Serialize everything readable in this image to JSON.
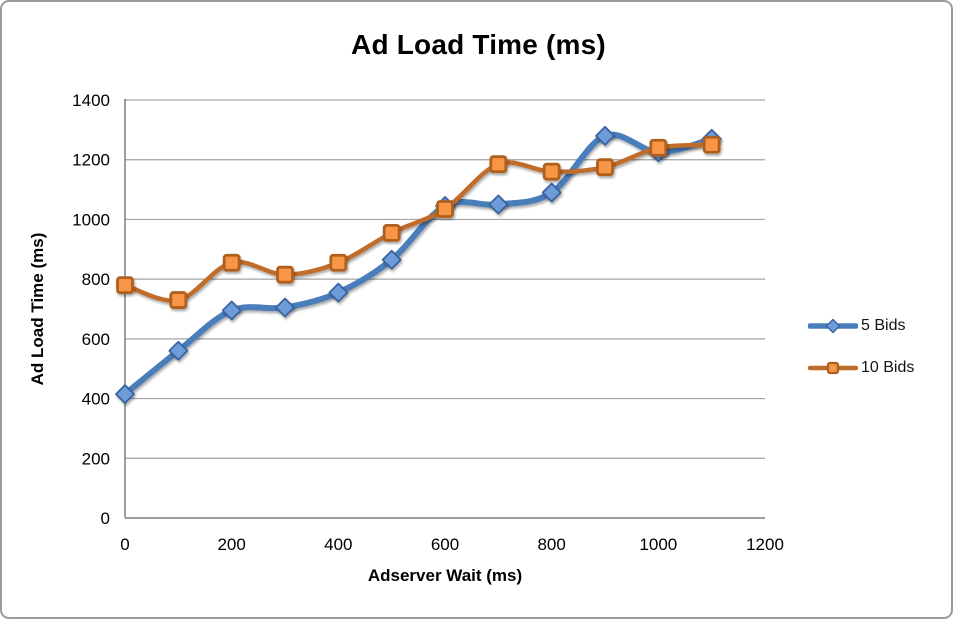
{
  "chart_data": {
    "type": "line",
    "title": "Ad Load Time (ms)",
    "xlabel": "Adserver Wait (ms)",
    "ylabel": "Ad Load Time (ms)",
    "x": [
      0,
      100,
      200,
      300,
      400,
      500,
      600,
      700,
      800,
      900,
      1000,
      1100
    ],
    "series": [
      {
        "name": "5 Bids",
        "values": [
          415,
          560,
          695,
          705,
          755,
          865,
          1045,
          1050,
          1090,
          1280,
          1225,
          1270
        ],
        "line_color": "#4A7EBB",
        "line_width": 6,
        "marker": "diamond",
        "marker_fill": "#6E9CD9",
        "marker_stroke": "#38649E"
      },
      {
        "name": "10 Bids",
        "values": [
          780,
          730,
          855,
          815,
          855,
          955,
          1035,
          1185,
          1160,
          1175,
          1240,
          1250
        ],
        "line_color": "#C06C2B",
        "line_width": 4.5,
        "marker": "square",
        "marker_fill": "#F79646",
        "marker_stroke": "#AF601F"
      }
    ],
    "xlim": [
      0,
      1200
    ],
    "ylim": [
      0,
      1400
    ],
    "x_ticks": [
      0,
      200,
      400,
      600,
      800,
      1000,
      1200
    ],
    "y_ticks": [
      0,
      200,
      400,
      600,
      800,
      1000,
      1200,
      1400
    ],
    "grid": true,
    "smoothed": true,
    "legend_position": "right"
  },
  "style": {
    "gridline_color": "#A3A3A3",
    "axis_color": "#7F7F7F",
    "tick_label_color": "#000000",
    "frame_border_color": "#9B9B9B",
    "background": "#FFFFFF"
  }
}
